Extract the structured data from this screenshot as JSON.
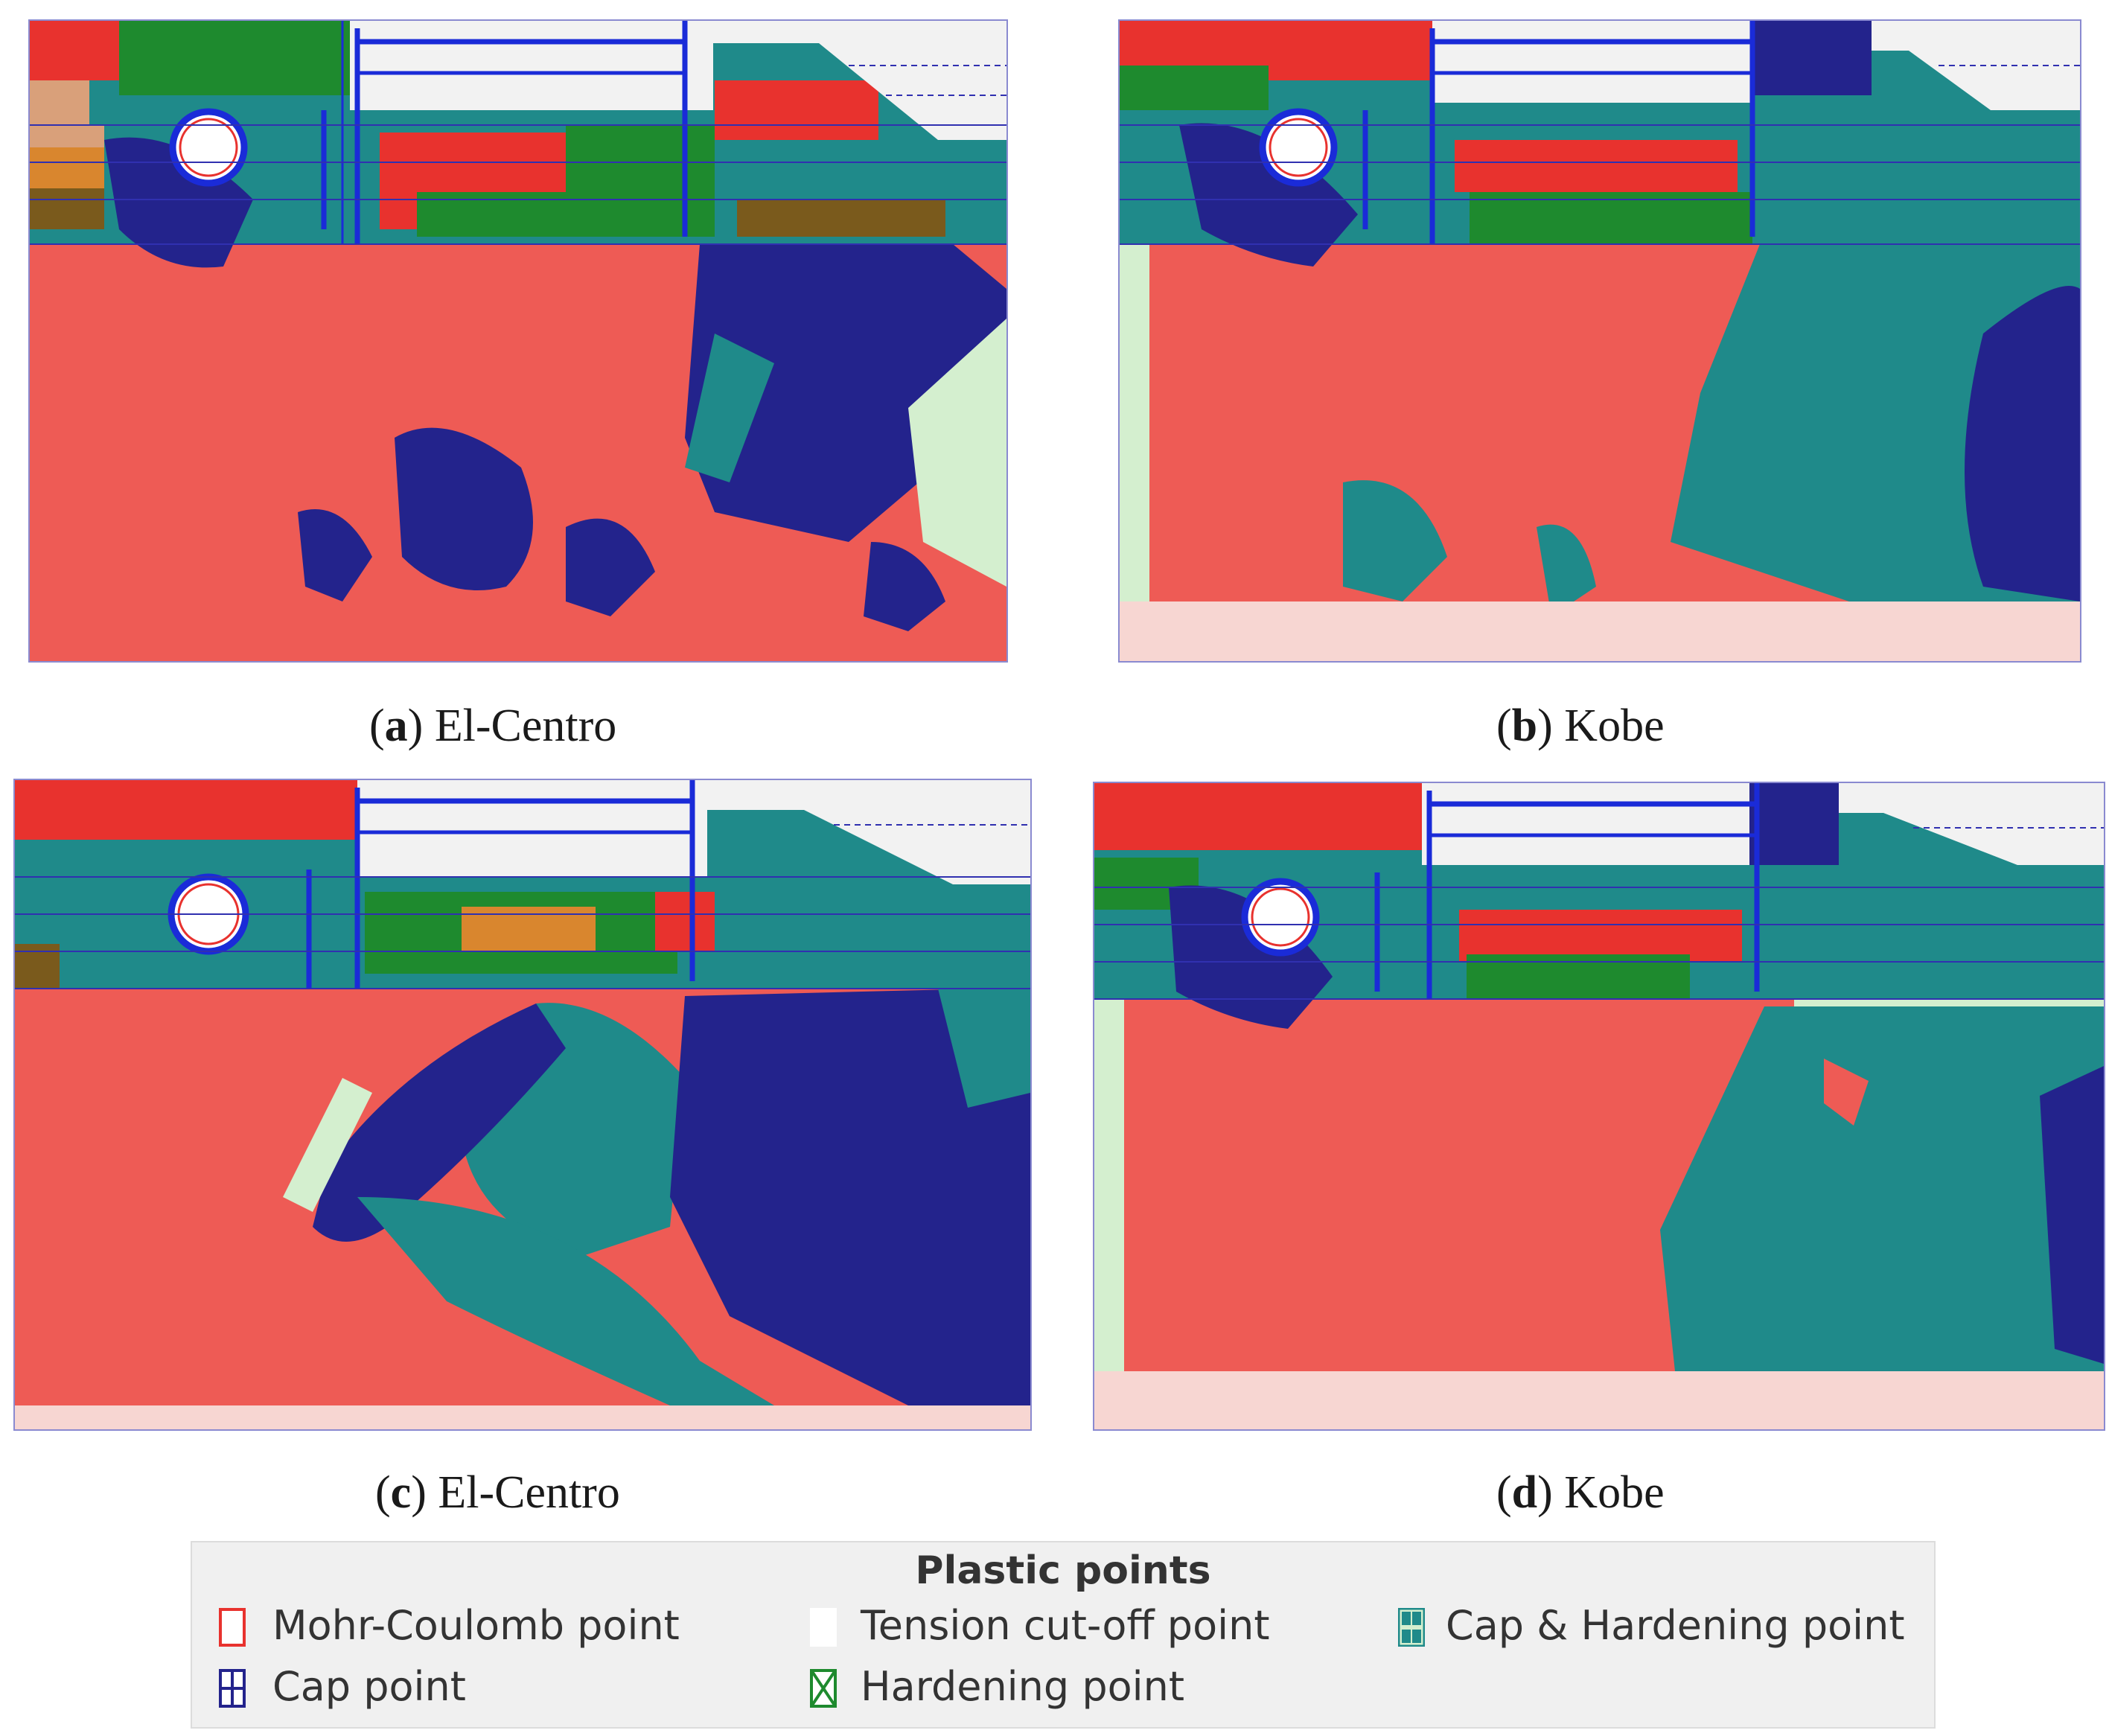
{
  "figure": {
    "panels": [
      {
        "id": "a",
        "label": "a",
        "caption": "El-Centro"
      },
      {
        "id": "b",
        "label": "b",
        "caption": "Kobe"
      },
      {
        "id": "c",
        "label": "c",
        "caption": "El-Centro"
      },
      {
        "id": "d",
        "label": "d",
        "caption": "Kobe"
      }
    ]
  },
  "legend": {
    "title": "Plastic points",
    "items": [
      {
        "label": "Mohr-Coulomb point",
        "color": "#e8322e",
        "icon": "mohr-coulomb-marker-icon"
      },
      {
        "label": "Tension cut-off point",
        "color": "#ffffff",
        "icon": "tension-cutoff-marker-icon"
      },
      {
        "label": "Cap & Hardening point",
        "color": "#1f8a8a",
        "icon": "cap-hardening-marker-icon"
      },
      {
        "label": "Cap point",
        "color": "#23238c",
        "icon": "cap-marker-icon"
      },
      {
        "label": "Hardening point",
        "color": "#1e8a2e",
        "icon": "hardening-marker-icon"
      }
    ]
  },
  "colors": {
    "mohr_coulomb": "#e8322e",
    "cap": "#23238c",
    "cap_hardening": "#1f8a8a",
    "hardening": "#1e8a2e",
    "soil_background": "#d4efcf",
    "structure_blue": "#1a2bd8"
  }
}
